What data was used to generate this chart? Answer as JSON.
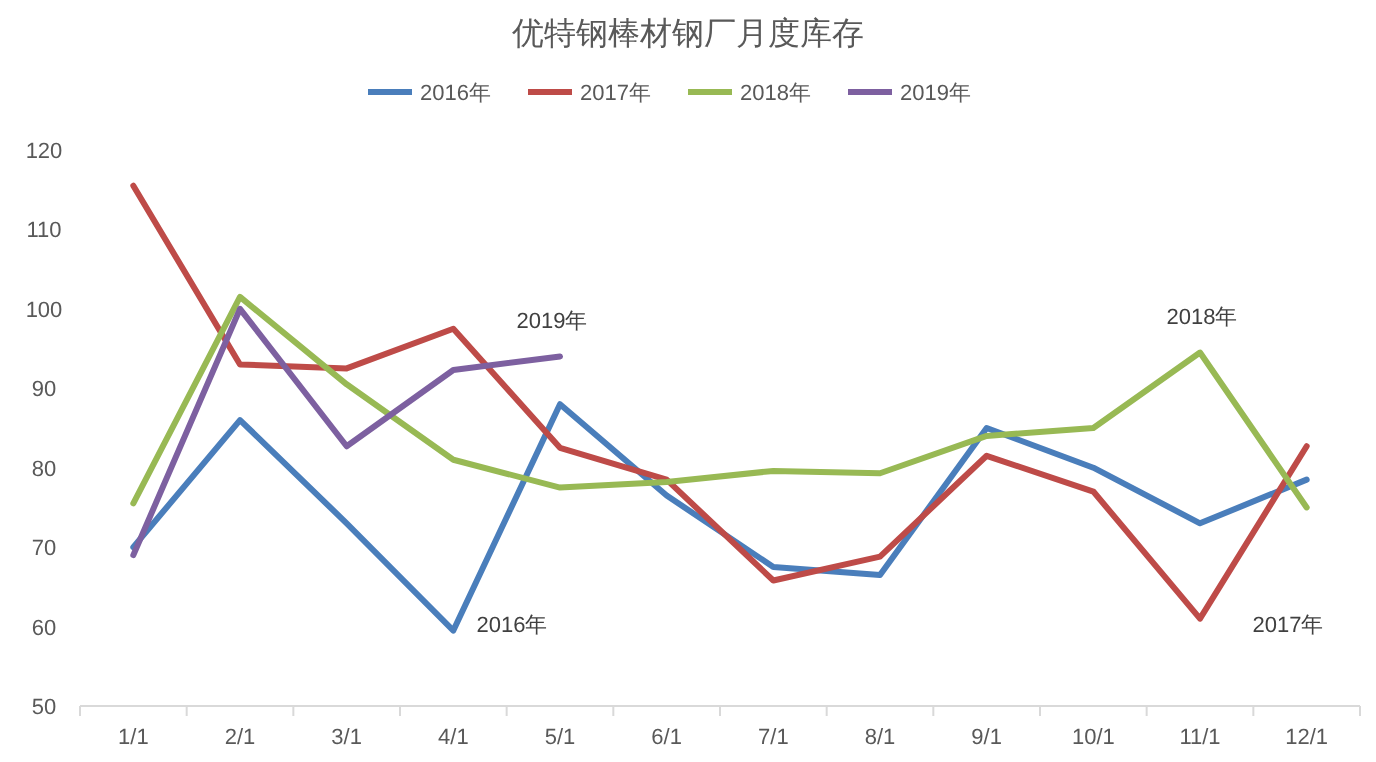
{
  "chart_data": {
    "type": "line",
    "title": "优特钢棒材钢厂月度库存",
    "categories": [
      "1/1",
      "2/1",
      "3/1",
      "4/1",
      "5/1",
      "6/1",
      "7/1",
      "8/1",
      "9/1",
      "10/1",
      "11/1",
      "12/1"
    ],
    "series": [
      {
        "name": "2016年",
        "color": "#4a7ebb",
        "values": [
          70,
          86,
          73,
          59.5,
          88,
          76.5,
          67.5,
          66.5,
          85,
          80,
          73,
          78.5
        ]
      },
      {
        "name": "2017年",
        "color": "#be4b48",
        "values": [
          115.5,
          93,
          92.5,
          97.5,
          82.5,
          78.5,
          65.8,
          68.8,
          81.5,
          77,
          61,
          82.7
        ]
      },
      {
        "name": "2018年",
        "color": "#98b954",
        "values": [
          75.5,
          101.5,
          90.5,
          81,
          77.5,
          78.2,
          79.6,
          79.3,
          84,
          85,
          94.5,
          75
        ]
      },
      {
        "name": "2019年",
        "color": "#7d60a0",
        "values": [
          69,
          100,
          82.7,
          92.3,
          94,
          null,
          null,
          null,
          null,
          null,
          null,
          null
        ]
      }
    ],
    "ylim": [
      50,
      120
    ],
    "yticks": [
      50,
      60,
      70,
      80,
      90,
      100,
      110,
      120
    ],
    "grid": false,
    "legend": "top",
    "marker": "none",
    "line_style": "solid",
    "annotations": [
      "2019年",
      "2016年",
      "2018年",
      "2017年"
    ]
  }
}
